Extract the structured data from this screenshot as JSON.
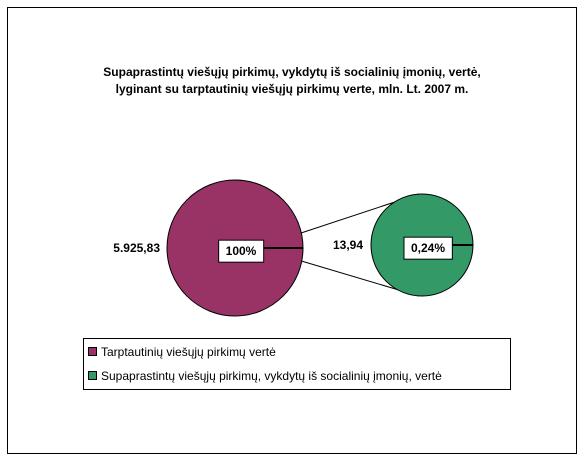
{
  "chart_data": {
    "type": "pie",
    "title": [
      "Supaprastintų viešųjų pirkimų, vykdytų iš socialinių įmonių, vertė,",
      "lyginant su tarptautinių viešųjų pirkimų verte, mln. Lt. 2007 m."
    ],
    "categories": [
      "Tarptautinių viešųjų pirkimų vertė",
      "Supaprastintų viešųjų pirkimų, vykdytų iš socialinių įmonių, vertė"
    ],
    "values": [
      5925.83,
      13.94
    ],
    "value_labels": [
      "5.925,83",
      "13,94"
    ],
    "percents": [
      100,
      0.24
    ],
    "percent_labels": [
      "100%",
      "0,24%"
    ],
    "colors": [
      "#993366",
      "#339966"
    ]
  }
}
